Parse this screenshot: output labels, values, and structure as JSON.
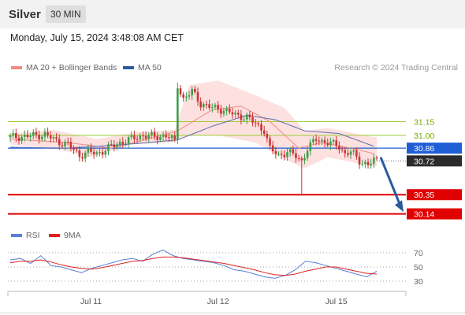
{
  "header": {
    "instrument": "Silver",
    "timeframe": "30 MIN",
    "datetime": "Monday, July 15, 2024 3:48:08 AM CET"
  },
  "legend": {
    "price": [
      {
        "label": "MA 20 + Bollinger Bands",
        "color": "#f28b82"
      },
      {
        "label": "MA 50",
        "color": "#2f5a9e"
      }
    ],
    "credit": "Research © 2024 Trading Central",
    "rsi": [
      {
        "label": "RSI",
        "color": "#5a7fd6"
      },
      {
        "label": "9MA",
        "color": "#e02020"
      }
    ]
  },
  "chart_data": [
    {
      "type": "candlestick",
      "title": "Silver 30 MIN",
      "x_ticks": [
        "Jul 11",
        "Jul 12",
        "Jul 15"
      ],
      "ylim": [
        30.05,
        31.62
      ],
      "levels": [
        {
          "value": 31.15,
          "label": "31.15",
          "kind": "resistance",
          "color": "#9acd32"
        },
        {
          "value": 31.0,
          "label": "31.00",
          "kind": "resistance",
          "color": "#9acd32"
        },
        {
          "value": 30.86,
          "label": "30.86",
          "kind": "pivot",
          "color": "#1f5fd6"
        },
        {
          "value": 30.72,
          "label": "30.72",
          "kind": "last",
          "color": "#333333"
        },
        {
          "value": 30.35,
          "label": "30.35",
          "kind": "support",
          "color": "#e00000"
        },
        {
          "value": 30.14,
          "label": "30.14",
          "kind": "support",
          "color": "#e00000"
        }
      ],
      "forecast_arrow": {
        "from": 30.76,
        "to": 30.16
      },
      "close_path": [
        [
          0,
          30.98
        ],
        [
          6,
          30.99
        ],
        [
          12,
          31.01
        ],
        [
          16,
          30.94
        ],
        [
          20,
          30.9
        ],
        [
          24,
          30.78
        ],
        [
          27,
          30.82
        ],
        [
          30,
          30.8
        ],
        [
          34,
          30.86
        ],
        [
          38,
          30.92
        ],
        [
          42,
          30.96
        ],
        [
          46,
          31.0
        ],
        [
          50,
          30.98
        ],
        [
          54,
          31.0
        ],
        [
          57,
          30.93
        ],
        [
          58,
          31.55
        ],
        [
          60,
          31.4
        ],
        [
          63,
          31.48
        ],
        [
          66,
          31.35
        ],
        [
          70,
          31.3
        ],
        [
          74,
          31.28
        ],
        [
          78,
          31.22
        ],
        [
          82,
          31.2
        ],
        [
          86,
          31.1
        ],
        [
          88,
          31.06
        ],
        [
          90,
          30.85
        ],
        [
          93,
          30.78
        ],
        [
          96,
          30.82
        ],
        [
          99,
          30.77
        ],
        [
          101,
          30.72
        ],
        [
          103,
          30.85
        ],
        [
          106,
          30.96
        ],
        [
          110,
          30.92
        ],
        [
          114,
          30.88
        ],
        [
          116,
          30.8
        ],
        [
          118,
          30.82
        ],
        [
          121,
          30.72
        ],
        [
          124,
          30.68
        ],
        [
          126,
          30.72
        ]
      ],
      "spikes": [
        {
          "i": 58,
          "high": 31.58
        },
        {
          "i": 101,
          "low": 30.36
        }
      ],
      "ma20_path": [
        [
          0,
          30.96
        ],
        [
          20,
          30.92
        ],
        [
          35,
          30.86
        ],
        [
          50,
          30.98
        ],
        [
          58,
          31.05
        ],
        [
          70,
          31.28
        ],
        [
          80,
          31.32
        ],
        [
          90,
          31.15
        ],
        [
          100,
          30.86
        ],
        [
          108,
          30.92
        ],
        [
          118,
          30.86
        ],
        [
          126,
          30.8
        ]
      ],
      "bollinger_upper": [
        [
          0,
          31.02
        ],
        [
          15,
          31.06
        ],
        [
          30,
          30.96
        ],
        [
          45,
          31.04
        ],
        [
          57,
          31.06
        ],
        [
          62,
          31.55
        ],
        [
          72,
          31.6
        ],
        [
          85,
          31.44
        ],
        [
          95,
          31.3
        ],
        [
          102,
          31.05
        ],
        [
          110,
          31.08
        ],
        [
          126,
          30.98
        ]
      ],
      "bollinger_lower": [
        [
          0,
          30.9
        ],
        [
          15,
          30.86
        ],
        [
          28,
          30.76
        ],
        [
          42,
          30.9
        ],
        [
          55,
          30.92
        ],
        [
          62,
          31.0
        ],
        [
          72,
          31.0
        ],
        [
          85,
          30.92
        ],
        [
          95,
          30.74
        ],
        [
          102,
          30.64
        ],
        [
          110,
          30.76
        ],
        [
          126,
          30.66
        ]
      ],
      "ma50_path": [
        [
          0,
          30.87
        ],
        [
          20,
          30.86
        ],
        [
          40,
          30.9
        ],
        [
          58,
          30.95
        ],
        [
          70,
          31.1
        ],
        [
          82,
          31.22
        ],
        [
          92,
          31.17
        ],
        [
          102,
          31.05
        ],
        [
          114,
          31.02
        ],
        [
          126,
          30.88
        ]
      ]
    },
    {
      "type": "line",
      "title": "RSI",
      "ylim": [
        20,
        80
      ],
      "y_ticks": [
        70,
        50,
        30
      ],
      "series": [
        {
          "name": "RSI",
          "color": "#5a7fd6",
          "values": [
            60,
            62,
            55,
            66,
            52,
            50,
            46,
            42,
            48,
            52,
            56,
            60,
            62,
            58,
            68,
            74,
            66,
            62,
            60,
            58,
            56,
            52,
            46,
            44,
            40,
            36,
            34,
            38,
            46,
            58,
            56,
            52,
            48,
            44,
            40,
            36,
            44
          ]
        },
        {
          "name": "9MA",
          "color": "#e02020",
          "values": [
            56,
            58,
            58,
            60,
            57,
            53,
            50,
            48,
            47,
            49,
            52,
            55,
            58,
            59,
            62,
            64,
            64,
            63,
            61,
            59,
            57,
            55,
            52,
            49,
            46,
            42,
            39,
            38,
            40,
            44,
            47,
            50,
            50,
            47,
            44,
            41,
            40
          ]
        }
      ]
    }
  ]
}
